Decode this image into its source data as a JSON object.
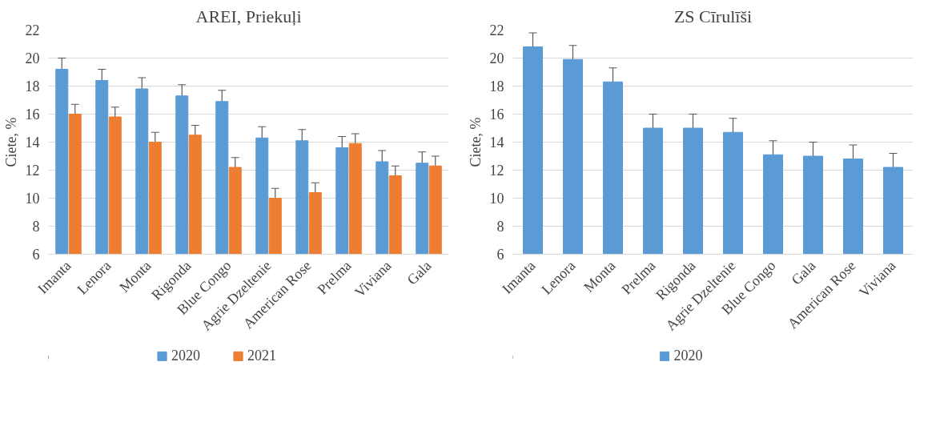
{
  "chart_data": [
    {
      "type": "bar",
      "title": "AREI, Priekuļi",
      "ylabel": "Ciete, %",
      "categories": [
        "Imanta",
        "Lenora",
        "Monta",
        "Rigonda",
        "Blue Congo",
        "Agrie Dzeltenie",
        "American Rose",
        "Prelma",
        "Viviana",
        "Gala"
      ],
      "series": [
        {
          "name": "2020",
          "color": "#5b9bd5",
          "values": [
            19.2,
            18.4,
            17.8,
            17.3,
            16.9,
            14.3,
            14.1,
            13.6,
            12.6,
            12.5
          ],
          "errors": [
            0.8,
            0.8,
            0.8,
            0.8,
            0.8,
            0.8,
            0.8,
            0.8,
            0.8,
            0.8
          ]
        },
        {
          "name": "2021",
          "color": "#ed7d31",
          "values": [
            16.0,
            15.8,
            14.0,
            14.5,
            12.2,
            10.0,
            10.4,
            13.9,
            11.6,
            12.3
          ],
          "errors": [
            0.7,
            0.7,
            0.7,
            0.7,
            0.7,
            0.7,
            0.7,
            0.7,
            0.7,
            0.7
          ]
        }
      ],
      "ylim": [
        6,
        22
      ],
      "yticks": [
        6,
        8,
        10,
        12,
        14,
        16,
        18,
        20,
        22
      ],
      "grid": "y",
      "legend": "bottom"
    },
    {
      "type": "bar",
      "title": "ZS Cīrulīši",
      "ylabel": "Ciete, %",
      "categories": [
        "Imanta",
        "Lenora",
        "Monta",
        "Prelma",
        "Rigonda",
        "Agrie Dzeltenie",
        "Blue Congo",
        "Gala",
        "American Rose",
        "Viviana"
      ],
      "series": [
        {
          "name": "2020",
          "color": "#5b9bd5",
          "values": [
            20.8,
            19.9,
            18.3,
            15.0,
            15.0,
            14.7,
            13.1,
            13.0,
            12.8,
            12.2
          ],
          "errors": [
            1.0,
            1.0,
            1.0,
            1.0,
            1.0,
            1.0,
            1.0,
            1.0,
            1.0,
            1.0
          ]
        }
      ],
      "ylim": [
        6,
        22
      ],
      "yticks": [
        6,
        8,
        10,
        12,
        14,
        16,
        18,
        20,
        22
      ],
      "grid": "y",
      "legend": "bottom"
    }
  ]
}
